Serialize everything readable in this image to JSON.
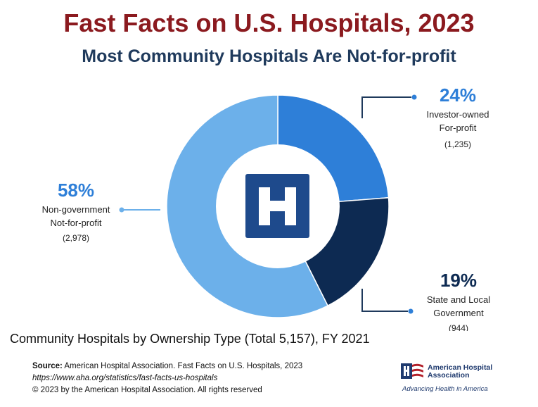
{
  "header": {
    "title": "Fast Facts on U.S. Hospitals, 2023",
    "subtitle": "Most Community Hospitals Are Not-for-profit"
  },
  "chart_data": {
    "type": "pie",
    "variant": "donut",
    "center_icon": "hospital-h-icon",
    "slices": [
      {
        "percent": "24%",
        "value": 24,
        "line1": "Investor-owned",
        "line2": "For-profit",
        "count": "(1,235)",
        "color": "#2e7fd8"
      },
      {
        "percent": "19%",
        "value": 19,
        "line1": "State and Local",
        "line2": "Government",
        "count": "(944)",
        "color": "#0d2a52"
      },
      {
        "percent": "58%",
        "value": 58,
        "line1": "Non-government",
        "line2": "Not-for-profit",
        "count": "(2,978)",
        "color": "#6cb0ea"
      }
    ],
    "caption": "Community Hospitals by Ownership Type (Total 5,157), FY 2021"
  },
  "footer": {
    "source_label": "Source:",
    "source_text": "American Hospital Association.  Fast Facts on U.S. Hospitals, 2023",
    "url": "https://www.aha.org/statistics/fast-facts-us-hospitals",
    "copyright": "© 2023 by the American Hospital Association. All rights reserved"
  },
  "logo": {
    "name": "American Hospital Association",
    "tagline": "Advancing Health in America"
  },
  "colors": {
    "title": "#8b1a1f",
    "subtitle": "#1f3a5c",
    "percent_label": "#2e7fd8",
    "icon_blue": "#1e4a8c",
    "leader_line": "#1f3a5c"
  }
}
